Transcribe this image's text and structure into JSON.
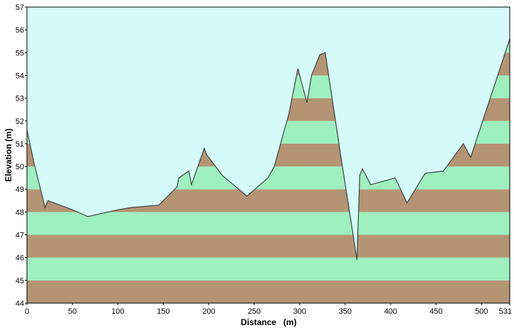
{
  "chart_data": {
    "type": "area",
    "title": "",
    "xlabel": "Distance   (m)",
    "ylabel": "Elevation (m)",
    "xlim": [
      0,
      531
    ],
    "ylim": [
      44,
      57
    ],
    "x_ticks": [
      0,
      50,
      100,
      150,
      200,
      250,
      300,
      350,
      400,
      450,
      500,
      531
    ],
    "y_ticks": [
      44,
      45,
      46,
      47,
      48,
      49,
      50,
      51,
      52,
      53,
      54,
      55,
      56,
      57
    ],
    "band_colors": [
      "#b59473",
      "#9ef0bf"
    ],
    "sky_color": "#d4fafa",
    "line_color": "#404040",
    "series": [
      {
        "x": [
          0,
          8,
          20,
          23,
          50,
          67,
          100,
          115,
          145,
          165,
          167,
          178,
          181,
          195,
          198,
          215,
          242,
          265,
          272,
          288,
          298,
          308,
          313,
          322,
          328,
          345,
          363,
          366,
          369,
          378,
          405,
          418,
          438,
          458,
          480,
          488,
          531
        ],
        "y": [
          51.6,
          50.1,
          48.2,
          48.5,
          48.1,
          47.8,
          48.1,
          48.2,
          48.3,
          49.1,
          49.5,
          49.8,
          49.2,
          50.8,
          50.5,
          49.6,
          48.7,
          49.5,
          50.0,
          52.3,
          54.3,
          52.8,
          54.0,
          54.9,
          55.0,
          50.5,
          45.9,
          49.6,
          49.9,
          49.2,
          49.5,
          48.4,
          49.7,
          49.8,
          51.0,
          50.4,
          55.6
        ]
      }
    ]
  }
}
